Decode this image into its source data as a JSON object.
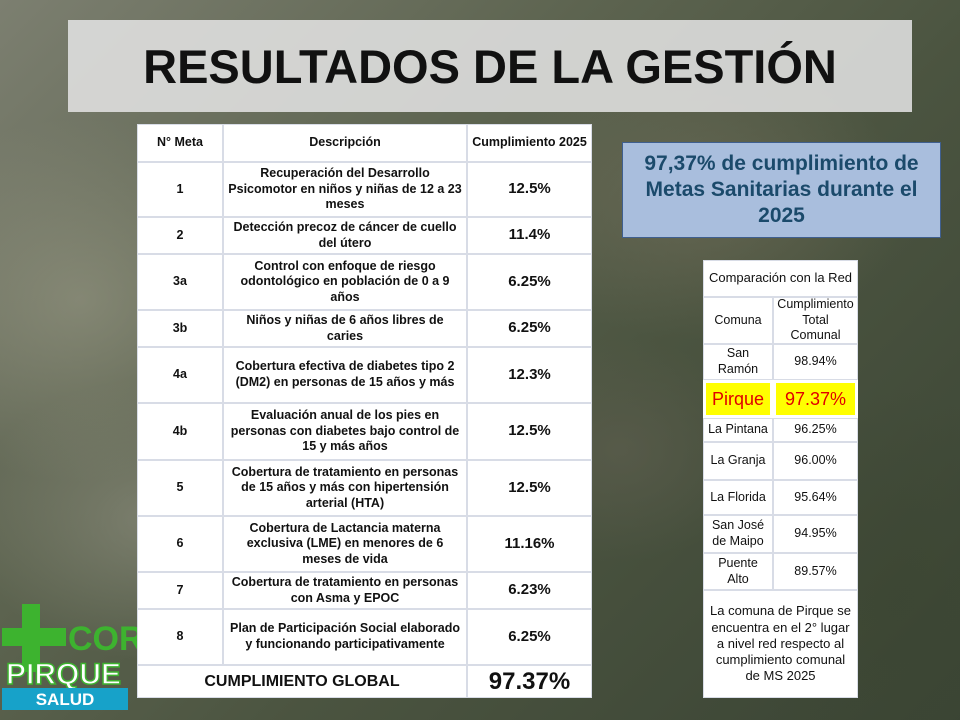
{
  "title": "RESULTADOS DE LA GESTIÓN",
  "goals_table": {
    "header": [
      "N° Meta",
      "Descripción",
      "Cumplimiento 2025"
    ],
    "rows": [
      [
        "1",
        "Recuperación del Desarrollo Psicomotor en niños y niñas de 12 a 23 meses",
        "12.5%"
      ],
      [
        "2",
        "Detección precoz de cáncer de cuello del útero",
        "11.4%"
      ],
      [
        "3a",
        "Control con enfoque de riesgo odontológico en población de 0 a 9 años",
        "6.25%"
      ],
      [
        "3b",
        "Niños y niñas de 6 años libres de caries",
        "6.25%"
      ],
      [
        "4a",
        "Cobertura efectiva de diabetes tipo 2 (DM2) en personas de 15 años y más",
        "12.3%"
      ],
      [
        "4b",
        "Evaluación anual de los pies en personas con diabetes bajo control de 15 y más años",
        "12.5%"
      ],
      [
        "5",
        "Cobertura de tratamiento en personas de 15 años y más con hipertensión arterial (HTA)",
        "12.5%"
      ],
      [
        "6",
        "Cobertura de Lactancia materna exclusiva (LME) en menores de 6 meses de vida",
        "11.16%"
      ],
      [
        "7",
        "Cobertura de tratamiento en personas con Asma y EPOC",
        "6.23%"
      ],
      [
        "8",
        "Plan de Participación Social elaborado y funcionando participativamente",
        "6.25%"
      ]
    ],
    "total": {
      "label": "CUMPLIMIENTO GLOBAL",
      "value": "97.37%"
    }
  },
  "summary": "97,37% de cumplimiento de Metas Sanitarias durante el 2025",
  "comparison_table": {
    "title": "Comparación con la Red",
    "header": [
      "Comuna",
      "Cumplimiento Total Comunal"
    ],
    "rows": [
      [
        "San Ramón",
        "98.94%"
      ],
      [
        "Pirque",
        "97.37%"
      ],
      [
        "La Pintana",
        "96.25%"
      ],
      [
        "La Granja",
        "96.00%"
      ],
      [
        "La Florida",
        "95.64%"
      ],
      [
        "San José de Maipo",
        "94.95%"
      ],
      [
        "Puente Alto",
        "89.57%"
      ]
    ],
    "note": "La comuna de Pirque se encuentra en el 2° lugar a nivel red respecto al cumplimiento comunal de MS 2025"
  },
  "logo": {
    "line1": "COR",
    "line2": "PIRQUE",
    "line3": "SALUD"
  }
}
